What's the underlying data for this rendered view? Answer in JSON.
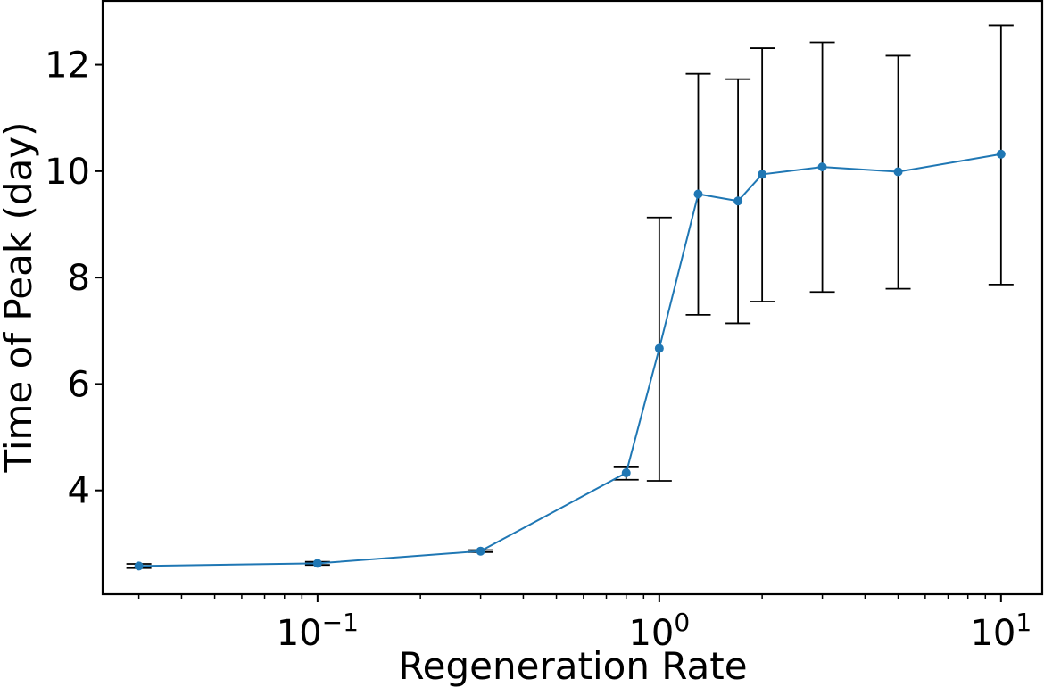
{
  "chart_data": {
    "type": "line",
    "title": "",
    "xlabel": "Regeneration Rate",
    "ylabel": "Time of Peak (day)",
    "x_scale": "log",
    "xlim": [
      0.0235,
      13.2
    ],
    "ylim": [
      2.05,
      13.2
    ],
    "x_ticks": [
      {
        "value": 0.1,
        "base": "10",
        "exp": "−1"
      },
      {
        "value": 1,
        "base": "10",
        "exp": "0"
      },
      {
        "value": 10,
        "base": "10",
        "exp": "1"
      }
    ],
    "y_ticks": [
      {
        "value": 4,
        "label": "4"
      },
      {
        "value": 6,
        "label": "6"
      },
      {
        "value": 8,
        "label": "8"
      },
      {
        "value": 10,
        "label": "10"
      },
      {
        "value": 12,
        "label": "12"
      }
    ],
    "grid": false,
    "series": [
      {
        "color": "#1f77b4",
        "errorbar_color": "#000000",
        "x": [
          0.03,
          0.1,
          0.3,
          0.8,
          1.0,
          1.3,
          1.7,
          2.0,
          3.0,
          5.0,
          10.0
        ],
        "y": [
          2.58,
          2.63,
          2.86,
          4.33,
          6.67,
          9.57,
          9.44,
          9.94,
          10.08,
          9.99,
          10.32
        ],
        "yerr_low": [
          2.54,
          2.6,
          2.84,
          4.2,
          4.18,
          7.3,
          7.14,
          7.55,
          7.73,
          7.79,
          7.87
        ],
        "yerr_high": [
          2.62,
          2.66,
          2.88,
          4.45,
          9.13,
          11.83,
          11.73,
          12.31,
          12.42,
          12.17,
          12.74
        ]
      }
    ]
  }
}
